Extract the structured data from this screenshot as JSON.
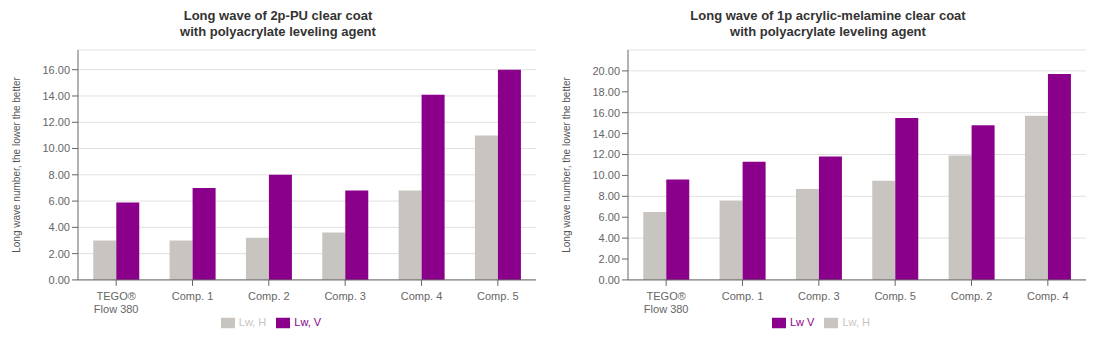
{
  "chart_data": [
    {
      "type": "bar",
      "title": "Long wave of 2p-PU clear coat\nwith polyacrylate leveling agent",
      "categories": [
        "TEGO®\nFlow 380",
        "Comp. 1",
        "Comp. 2",
        "Comp. 3",
        "Comp. 4",
        "Comp. 5"
      ],
      "series": [
        {
          "name": "Lw, H",
          "color": "#c8c5c0",
          "values": [
            3.0,
            3.0,
            3.2,
            3.6,
            6.8,
            11.0
          ]
        },
        {
          "name": "Lw, V",
          "color": "#8b008b",
          "values": [
            5.9,
            7.0,
            8.0,
            6.8,
            14.1,
            16.0
          ]
        }
      ],
      "ylabel": "Long wave number, the lower the better",
      "ylim": [
        0,
        17.5
      ],
      "yticks": [
        {
          "value": 0,
          "label": "0.00"
        },
        {
          "value": 2,
          "label": "2.00"
        },
        {
          "value": 4,
          "label": "4.00"
        },
        {
          "value": 6,
          "label": "6.00"
        },
        {
          "value": 8,
          "label": "8.00"
        },
        {
          "value": 10,
          "label": "10.00"
        },
        {
          "value": 12,
          "label": "12.00"
        },
        {
          "value": 14,
          "label": "14.00"
        },
        {
          "value": 16,
          "label": "16.00"
        }
      ],
      "grid": true,
      "legend": "bottom"
    },
    {
      "type": "bar",
      "title": "Long wave of 1p acrylic-melamine clear coat\nwith polyacrylate leveling agent",
      "categories": [
        "TEGO®\nFlow 380",
        "Comp. 1",
        "Comp. 3",
        "Comp. 5",
        "Comp. 2",
        "Comp. 4"
      ],
      "series": [
        {
          "name": "Lw, H",
          "color": "#c8c5c0",
          "values": [
            6.5,
            7.6,
            8.7,
            9.5,
            11.9,
            15.7
          ]
        },
        {
          "name": "Lw V",
          "color": "#8b008b",
          "values": [
            9.6,
            11.3,
            11.8,
            15.5,
            14.8,
            19.7
          ]
        }
      ],
      "ylabel": "Long wave number, the lower the better",
      "ylim": [
        0,
        22
      ],
      "yticks": [
        {
          "value": 0,
          "label": "0.00"
        },
        {
          "value": 2,
          "label": "2.00"
        },
        {
          "value": 4,
          "label": "4.00"
        },
        {
          "value": 6,
          "label": "6.00"
        },
        {
          "value": 8,
          "label": "8.00"
        },
        {
          "value": 10,
          "label": "10.00"
        },
        {
          "value": 12,
          "label": "12.00"
        },
        {
          "value": 14,
          "label": "14.00"
        },
        {
          "value": 16,
          "label": "16.00"
        },
        {
          "value": 18,
          "label": "18.00"
        },
        {
          "value": 20,
          "label": "20.00"
        }
      ],
      "grid": true,
      "legend": "bottom"
    }
  ]
}
